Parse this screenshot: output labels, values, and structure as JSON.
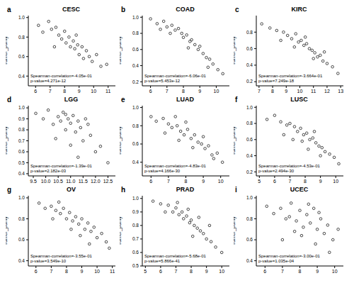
{
  "chart_data": [
    {
      "type": "scatter",
      "panel_label": "a",
      "title": "CESC",
      "y_label": "Tumor_purity",
      "annotations": [
        "Spearman-correlation=-4.05e-01",
        "p-value=4.271e-12"
      ],
      "color": "#000000",
      "marker": "circle",
      "xlim": [
        5.5,
        11.5
      ],
      "xticks": [
        6,
        7,
        8,
        9,
        10,
        11
      ],
      "ylim": [
        0.3,
        1.02
      ],
      "yticks": [
        0.4,
        0.6,
        0.8,
        {
          "value": 1,
          "label": "1.0"
        }
      ],
      "x": [
        6.2,
        6.5,
        6.9,
        7.1,
        7.4,
        7.6,
        7.8,
        8.0,
        8.1,
        8.3,
        8.4,
        8.6,
        8.7,
        8.9,
        9.0,
        9.2,
        9.3,
        9.5,
        9.7,
        9.9,
        10.2,
        10.5,
        10.9,
        7.3,
        8.8
      ],
      "y": [
        0.92,
        0.85,
        0.96,
        0.88,
        0.9,
        0.82,
        0.78,
        0.86,
        0.74,
        0.8,
        0.7,
        0.76,
        0.68,
        0.72,
        0.62,
        0.7,
        0.58,
        0.66,
        0.6,
        0.55,
        0.62,
        0.5,
        0.52,
        0.7,
        0.82
      ]
    },
    {
      "type": "scatter",
      "panel_label": "b",
      "title": "COAD",
      "y_label": "Tumor_purity",
      "annotations": [
        "Spearman-correlation=-6.06e-01",
        "p-value=5.453e-12"
      ],
      "color": "#000000",
      "marker": "circle",
      "xlim": [
        5.5,
        10.8
      ],
      "xticks": [
        6,
        7,
        8,
        9,
        10
      ],
      "ylim": [
        0.15,
        1.02
      ],
      "yticks": [
        0.2,
        0.4,
        0.6,
        0.8,
        {
          "value": 1,
          "label": "1.0"
        }
      ],
      "x": [
        6.0,
        6.4,
        6.8,
        7.0,
        7.3,
        7.5,
        7.7,
        7.9,
        8.0,
        8.2,
        8.4,
        8.5,
        8.7,
        8.9,
        9.0,
        9.2,
        9.4,
        9.6,
        9.8,
        10.1,
        10.4,
        6.6,
        7.2,
        8.3,
        9.5
      ],
      "y": [
        0.98,
        0.92,
        0.95,
        0.88,
        0.9,
        0.84,
        0.86,
        0.8,
        0.75,
        0.78,
        0.7,
        0.72,
        0.66,
        0.6,
        0.64,
        0.55,
        0.5,
        0.48,
        0.42,
        0.35,
        0.3,
        0.85,
        0.8,
        0.62,
        0.38
      ]
    },
    {
      "type": "scatter",
      "panel_label": "c",
      "title": "KIRC",
      "y_label": "Tumor_purity",
      "annotations": [
        "Spearman-correlation=-3.664e-01",
        "p-value=7.249e-18"
      ],
      "color": "#000000",
      "marker": "circle",
      "xlim": [
        6.8,
        13.2
      ],
      "xticks": [
        7,
        8,
        9,
        10,
        11,
        12,
        13
      ],
      "ylim": [
        0.15,
        1.0
      ],
      "yticks": [
        0.2,
        0.4,
        0.6,
        0.8
      ],
      "x": [
        7.2,
        7.8,
        8.3,
        8.8,
        9.1,
        9.4,
        9.7,
        9.9,
        10.1,
        10.3,
        10.5,
        10.7,
        10.9,
        11.1,
        11.3,
        11.5,
        11.7,
        12.0,
        12.4,
        12.8,
        9.6,
        10.4,
        11.0,
        8.6,
        11.8
      ],
      "y": [
        0.9,
        0.85,
        0.82,
        0.8,
        0.76,
        0.72,
        0.78,
        0.68,
        0.7,
        0.64,
        0.66,
        0.6,
        0.58,
        0.55,
        0.5,
        0.52,
        0.45,
        0.42,
        0.38,
        0.3,
        0.62,
        0.74,
        0.48,
        0.7,
        0.56
      ]
    },
    {
      "type": "scatter",
      "panel_label": "d",
      "title": "LGG",
      "y_label": "Tumor_purity",
      "annotations": [
        "Spearman-correlation=-1.39e-01",
        "p-value=2.182e-03"
      ],
      "color": "#000000",
      "marker": "circle",
      "xlim": [
        9.3,
        12.8
      ],
      "xticks": [
        9.5,
        {
          "value": 10,
          "label": "10.0"
        },
        10.5,
        {
          "value": 11,
          "label": "11.0"
        },
        11.5,
        {
          "value": 12,
          "label": "12.0"
        },
        12.5
      ],
      "ylim": [
        0.38,
        1.02
      ],
      "yticks": [
        0.4,
        0.5,
        0.6,
        0.7,
        0.8,
        0.9,
        {
          "value": 1,
          "label": "1.0"
        }
      ],
      "x": [
        9.6,
        9.9,
        10.1,
        10.3,
        10.5,
        10.6,
        10.7,
        10.8,
        10.9,
        11.0,
        11.1,
        11.2,
        11.3,
        11.4,
        11.5,
        11.6,
        11.8,
        12.0,
        12.2,
        12.5,
        10.4,
        11.0,
        11.3,
        10.8,
        11.7
      ],
      "y": [
        0.95,
        0.9,
        0.98,
        0.85,
        0.92,
        0.88,
        0.96,
        0.8,
        0.9,
        0.86,
        0.93,
        0.78,
        0.88,
        0.82,
        0.7,
        0.9,
        0.75,
        0.6,
        0.65,
        0.5,
        0.72,
        0.66,
        0.55,
        0.94,
        0.85
      ]
    },
    {
      "type": "scatter",
      "panel_label": "e",
      "title": "LUAD",
      "y_label": "Tumor_purity",
      "annotations": [
        "Spearman-correlation=-4.83e-01",
        "p-value=4.166e-30"
      ],
      "color": "#000000",
      "marker": "circle",
      "xlim": [
        5.5,
        10.5
      ],
      "xticks": [
        6,
        7,
        8,
        9,
        10
      ],
      "ylim": [
        0.25,
        1.02
      ],
      "yticks": [
        0.4,
        0.6,
        0.8,
        {
          "value": 1,
          "label": "1.0"
        }
      ],
      "x": [
        6.0,
        6.3,
        6.7,
        7.0,
        7.2,
        7.5,
        7.7,
        7.9,
        8.1,
        8.3,
        8.5,
        8.7,
        8.9,
        9.1,
        9.3,
        9.5,
        9.8,
        10.1,
        6.8,
        7.6,
        8.4,
        9.0,
        9.6,
        8.0,
        7.4
      ],
      "y": [
        0.9,
        0.85,
        0.88,
        0.82,
        0.78,
        0.8,
        0.74,
        0.7,
        0.76,
        0.66,
        0.7,
        0.62,
        0.6,
        0.55,
        0.58,
        0.48,
        0.5,
        0.4,
        0.72,
        0.64,
        0.56,
        0.68,
        0.44,
        0.84,
        0.9
      ]
    },
    {
      "type": "scatter",
      "panel_label": "f",
      "title": "LUSC",
      "y_label": "Tumor_purity",
      "annotations": [
        "Spearman-correlation=-4.53e-01",
        "p-value=2.494e-30"
      ],
      "color": "#000000",
      "marker": "circle",
      "xlim": [
        4.8,
        10.5
      ],
      "xticks": [
        5,
        6,
        7,
        8,
        9,
        10
      ],
      "ylim": [
        0.15,
        1.02
      ],
      "yticks": [
        0.2,
        0.4,
        0.6,
        0.8,
        {
          "value": 1,
          "label": "1.0"
        }
      ],
      "x": [
        5.5,
        6.0,
        6.4,
        6.8,
        7.0,
        7.3,
        7.5,
        7.7,
        7.9,
        8.1,
        8.3,
        8.5,
        8.7,
        8.9,
        9.1,
        9.3,
        9.6,
        9.9,
        7.2,
        7.8,
        8.2,
        8.6,
        9.0,
        6.6,
        10.2
      ],
      "y": [
        0.85,
        0.9,
        0.82,
        0.78,
        0.8,
        0.76,
        0.7,
        0.74,
        0.66,
        0.68,
        0.6,
        0.62,
        0.56,
        0.52,
        0.5,
        0.45,
        0.42,
        0.38,
        0.6,
        0.58,
        0.48,
        0.7,
        0.4,
        0.66,
        0.3
      ]
    },
    {
      "type": "scatter",
      "panel_label": "g",
      "title": "OV",
      "y_label": "Tumor_purity",
      "annotations": [
        "Spearman-correlation=-3.55e-01",
        "p-value=3.549e-10"
      ],
      "color": "#000000",
      "marker": "circle",
      "xlim": [
        5.5,
        11.2
      ],
      "xticks": [
        6,
        7,
        8,
        9,
        10,
        11
      ],
      "ylim": [
        0.35,
        1.02
      ],
      "yticks": [
        0.4,
        0.6,
        0.8,
        {
          "value": 1,
          "label": "1.0"
        }
      ],
      "x": [
        6.2,
        6.6,
        7.0,
        7.3,
        7.6,
        7.8,
        8.0,
        8.2,
        8.4,
        8.6,
        8.8,
        9.0,
        9.2,
        9.4,
        9.6,
        9.8,
        10.0,
        10.3,
        10.6,
        7.5,
        8.3,
        8.9,
        9.5,
        10.8,
        7.1
      ],
      "y": [
        0.95,
        0.9,
        0.92,
        0.88,
        0.85,
        0.9,
        0.8,
        0.86,
        0.78,
        0.82,
        0.75,
        0.8,
        0.7,
        0.76,
        0.68,
        0.72,
        0.62,
        0.66,
        0.58,
        0.96,
        0.7,
        0.64,
        0.56,
        0.52,
        0.8
      ]
    },
    {
      "type": "scatter",
      "panel_label": "h",
      "title": "PRAD",
      "y_label": "Tumor_purity",
      "annotations": [
        "Spearman-correlation=-5.68e-01",
        "p-value=5.866e-41"
      ],
      "color": "#000000",
      "marker": "circle",
      "xlim": [
        4.8,
        10.5
      ],
      "xticks": [
        5,
        6,
        7,
        8,
        9,
        10
      ],
      "ylim": [
        0.5,
        1.02
      ],
      "yticks": [
        0.5,
        0.6,
        0.7,
        0.8,
        0.9,
        {
          "value": 1,
          "label": "1.0"
        }
      ],
      "x": [
        5.5,
        6.0,
        6.5,
        6.8,
        7.0,
        7.2,
        7.4,
        7.5,
        7.7,
        7.9,
        8.0,
        8.2,
        8.4,
        8.6,
        8.8,
        9.0,
        9.3,
        9.6,
        10.0,
        6.3,
        7.1,
        7.8,
        8.5,
        9.2,
        8.1
      ],
      "y": [
        0.98,
        0.96,
        0.95,
        0.9,
        0.93,
        0.88,
        0.9,
        0.85,
        0.87,
        0.82,
        0.84,
        0.8,
        0.78,
        0.76,
        0.74,
        0.7,
        0.68,
        0.64,
        0.6,
        0.9,
        0.97,
        0.92,
        0.86,
        0.8,
        0.72
      ]
    },
    {
      "type": "scatter",
      "panel_label": "i",
      "title": "UCEC",
      "y_label": "Tumor_purity",
      "annotations": [
        "Spearman-correlation=-3.00e-01",
        "p-value=1.035e-04"
      ],
      "color": "#000000",
      "marker": "circle",
      "xlim": [
        5.5,
        10.5
      ],
      "xticks": [
        6,
        7,
        8,
        9,
        10
      ],
      "ylim": [
        0.35,
        1.02
      ],
      "yticks": [
        0.4,
        0.6,
        0.8,
        {
          "value": 1,
          "label": "1.0"
        }
      ],
      "x": [
        6.1,
        6.5,
        6.9,
        7.2,
        7.5,
        7.8,
        8.0,
        8.2,
        8.4,
        8.6,
        8.8,
        9.0,
        9.2,
        9.4,
        9.6,
        9.9,
        10.2,
        7.0,
        7.7,
        8.5,
        9.1,
        8.9,
        7.4,
        9.7,
        8.1
      ],
      "y": [
        0.92,
        0.85,
        0.9,
        0.8,
        0.95,
        0.78,
        0.88,
        0.72,
        0.84,
        0.76,
        0.9,
        0.7,
        0.8,
        0.66,
        0.74,
        0.6,
        0.7,
        0.6,
        0.68,
        0.94,
        0.86,
        0.56,
        0.82,
        0.48,
        0.64
      ]
    }
  ]
}
